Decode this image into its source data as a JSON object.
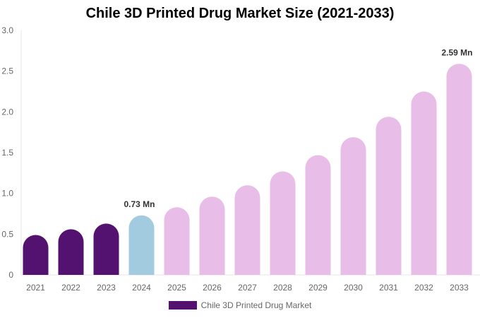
{
  "chart_data": {
    "type": "bar",
    "title": "Chile 3D Printed Drug Market Size (2021-2033)",
    "categories": [
      "2021",
      "2022",
      "2023",
      "2024",
      "2025",
      "2026",
      "2027",
      "2028",
      "2029",
      "2030",
      "2031",
      "2032",
      "2033"
    ],
    "series": [
      {
        "name": "Chile 3D Printed Drug Market",
        "values": [
          0.49,
          0.56,
          0.63,
          0.73,
          0.83,
          0.96,
          1.1,
          1.27,
          1.47,
          1.69,
          1.94,
          2.25,
          2.59
        ]
      }
    ],
    "data_labels": {
      "3": "0.73 Mn",
      "12": "2.59 Mn"
    },
    "ylim": [
      0,
      3.0
    ],
    "yticks": [
      "0",
      "0.5",
      "1.0",
      "1.5",
      "2.0",
      "2.5",
      "3.0"
    ],
    "grid": false,
    "legend_position": "bottom",
    "colors": {
      "historical": "#541270",
      "current": "#a3cbe0",
      "forecast": "#e8bde8"
    }
  }
}
